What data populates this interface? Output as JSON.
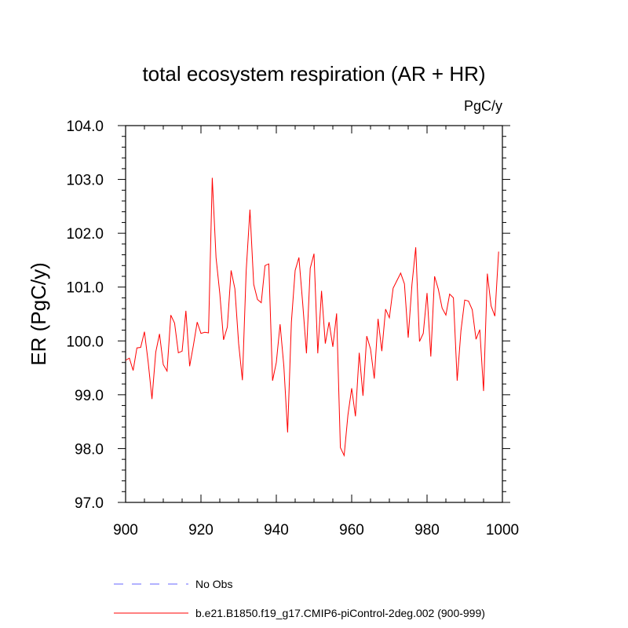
{
  "chart_data": {
    "type": "line",
    "title": "total ecosystem respiration (AR + HR)",
    "units": "PgC/y",
    "xlabel": "",
    "ylabel": "ER  (PgC/y)",
    "xlim": [
      900,
      1000
    ],
    "ylim": [
      97.0,
      104.0
    ],
    "xticks": [
      900,
      920,
      940,
      960,
      980,
      1000
    ],
    "xtick_labels": [
      "900",
      "920",
      "940",
      "960",
      "980",
      "1000"
    ],
    "yticks": [
      97.0,
      98.0,
      99.0,
      100.0,
      101.0,
      102.0,
      103.0,
      104.0
    ],
    "ytick_labels": [
      "97.0",
      "98.0",
      "99.0",
      "100.0",
      "101.0",
      "102.0",
      "103.0",
      "104.0"
    ],
    "legend_position": "bottom",
    "series": [
      {
        "name": "b.e21.B1850.f19_g17.CMIP6-piControl-2deg.002 (900-999)",
        "color": "#ff0000",
        "style": "solid",
        "x": [
          900,
          901,
          902,
          903,
          904,
          905,
          906,
          907,
          908,
          909,
          910,
          911,
          912,
          913,
          914,
          915,
          916,
          917,
          918,
          919,
          920,
          921,
          922,
          923,
          924,
          925,
          926,
          927,
          928,
          929,
          930,
          931,
          932,
          933,
          934,
          935,
          936,
          937,
          938,
          939,
          940,
          941,
          942,
          943,
          944,
          945,
          946,
          947,
          948,
          949,
          950,
          951,
          952,
          953,
          954,
          955,
          956,
          957,
          958,
          959,
          960,
          961,
          962,
          963,
          964,
          965,
          966,
          967,
          968,
          969,
          970,
          971,
          972,
          973,
          974,
          975,
          976,
          977,
          978,
          979,
          980,
          981,
          982,
          983,
          984,
          985,
          986,
          987,
          988,
          989,
          990,
          991,
          992,
          993,
          994,
          995,
          996,
          997,
          998,
          999
        ],
        "y": [
          99.64,
          99.68,
          99.45,
          99.87,
          99.88,
          100.17,
          99.6,
          98.92,
          99.79,
          100.13,
          99.56,
          99.44,
          100.48,
          100.33,
          99.78,
          99.81,
          100.56,
          99.53,
          99.92,
          100.35,
          100.14,
          100.16,
          100.15,
          103.03,
          101.55,
          100.88,
          100.02,
          100.26,
          101.31,
          100.97,
          99.95,
          99.27,
          101.3,
          102.44,
          101.05,
          100.77,
          100.71,
          101.4,
          101.43,
          99.26,
          99.6,
          100.31,
          99.53,
          98.3,
          100.35,
          101.31,
          101.55,
          100.7,
          99.77,
          101.35,
          101.62,
          99.77,
          100.93,
          99.95,
          100.35,
          99.89,
          100.51,
          98.02,
          97.87,
          98.62,
          99.12,
          98.6,
          99.78,
          98.98,
          100.09,
          99.85,
          99.3,
          100.41,
          99.81,
          100.59,
          100.43,
          100.98,
          101.12,
          101.26,
          101.06,
          100.06,
          101.05,
          101.74,
          99.99,
          100.14,
          100.89,
          99.71,
          101.2,
          100.96,
          100.61,
          100.48,
          100.87,
          100.8,
          99.26,
          100.19,
          100.76,
          100.74,
          100.58,
          100.03,
          100.21,
          99.07,
          101.25,
          100.65,
          100.46,
          101.66
        ]
      },
      {
        "name": "No Obs",
        "color": "#6666ff",
        "style": "dashed",
        "x": [],
        "y": []
      }
    ]
  }
}
